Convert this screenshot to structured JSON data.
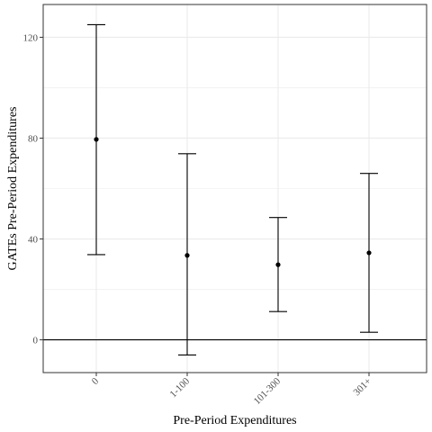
{
  "chart_data": {
    "type": "errorbar",
    "xlabel": "Pre-Period Expenditures",
    "ylabel": "GATEs Pre-Period Expenditures",
    "categories": [
      "0",
      "1-100",
      "101-300",
      "301+"
    ],
    "series": [
      {
        "estimates": [
          79.5,
          33.5,
          29.8,
          34.5
        ],
        "lower": [
          33.8,
          -6.0,
          11.2,
          3.0
        ],
        "upper": [
          125.0,
          73.8,
          48.5,
          66.0
        ]
      }
    ],
    "ylim": [
      -13,
      133
    ],
    "yticks": [
      0,
      40,
      80,
      120
    ],
    "reference_line_y": 0,
    "grid": true,
    "colors": {
      "grid": "#ebebeb",
      "mark": "#000000",
      "panel_border": "#333333"
    }
  }
}
